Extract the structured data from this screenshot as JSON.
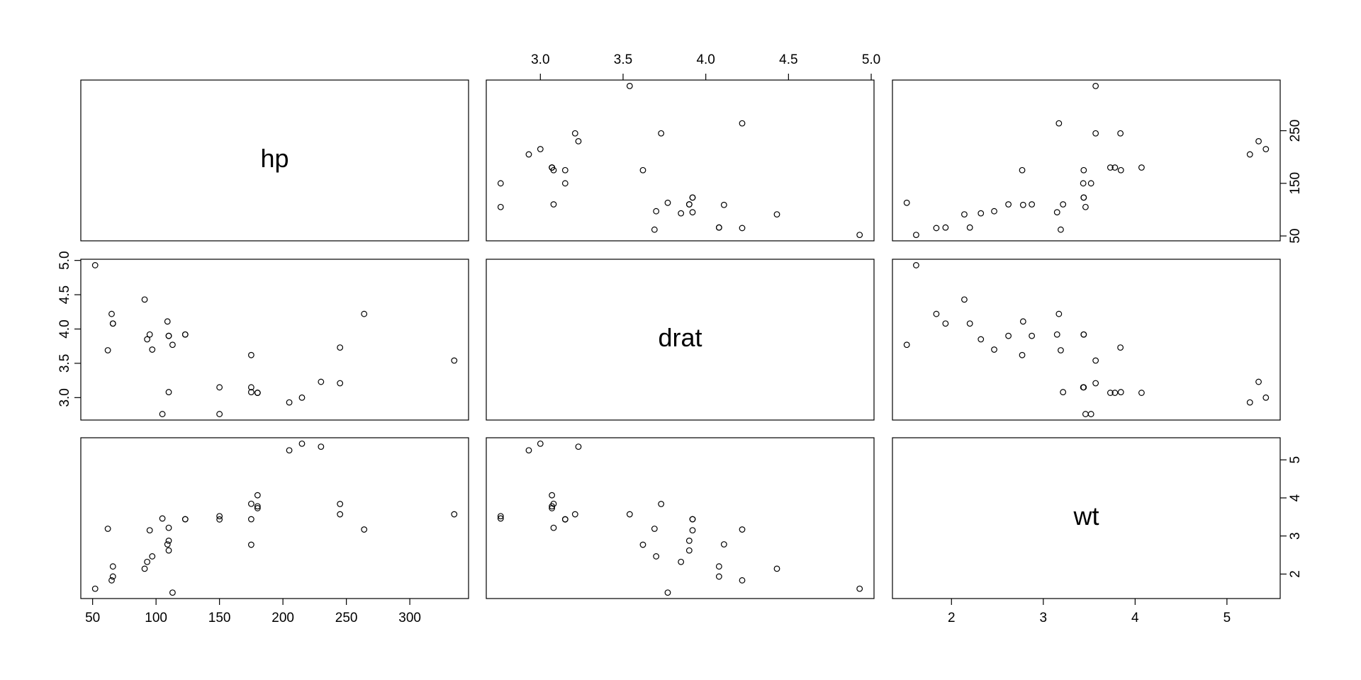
{
  "chart_data": {
    "type": "pairs",
    "variables": [
      {
        "name": "hp",
        "lim": [
          40.7,
          346.3
        ],
        "xticks": [
          50,
          100,
          150,
          200,
          250,
          300
        ],
        "yticks": [
          50,
          150,
          250
        ],
        "values": [
          110,
          110,
          93,
          110,
          175,
          105,
          245,
          62,
          95,
          123,
          123,
          180,
          180,
          180,
          205,
          215,
          230,
          66,
          52,
          65,
          97,
          150,
          150,
          245,
          175,
          66,
          91,
          113,
          264,
          175,
          335,
          109
        ]
      },
      {
        "name": "drat",
        "lim": [
          2.673,
          5.017
        ],
        "xticks": [
          {
            "value": 3,
            "label": "3.0"
          },
          3.5,
          {
            "value": 4,
            "label": "4.0"
          },
          4.5,
          {
            "value": 5,
            "label": "5.0"
          }
        ],
        "yticks": [
          {
            "value": 3,
            "label": "3.0"
          },
          3.5,
          {
            "value": 4,
            "label": "4.0"
          },
          4.5,
          {
            "value": 5,
            "label": "5.0"
          }
        ],
        "values": [
          3.9,
          3.9,
          3.85,
          3.08,
          3.15,
          2.76,
          3.21,
          3.69,
          3.92,
          3.92,
          3.92,
          3.07,
          3.07,
          3.07,
          2.93,
          3.0,
          3.23,
          4.08,
          4.93,
          4.22,
          3.7,
          2.76,
          3.15,
          3.73,
          3.08,
          4.08,
          4.43,
          3.77,
          4.22,
          3.62,
          3.54,
          4.11
        ]
      },
      {
        "name": "wt",
        "lim": [
          1.357,
          5.58
        ],
        "xticks": [
          2,
          3,
          4,
          5
        ],
        "yticks": [
          2,
          3,
          4,
          5
        ],
        "values": [
          2.62,
          2.875,
          2.32,
          3.215,
          3.44,
          3.46,
          3.57,
          3.19,
          3.15,
          3.44,
          3.44,
          4.07,
          3.73,
          3.78,
          5.25,
          5.424,
          5.345,
          2.2,
          1.615,
          1.835,
          2.465,
          3.52,
          3.435,
          3.84,
          3.845,
          1.935,
          2.14,
          1.513,
          3.17,
          2.77,
          3.57,
          2.78
        ]
      }
    ]
  }
}
